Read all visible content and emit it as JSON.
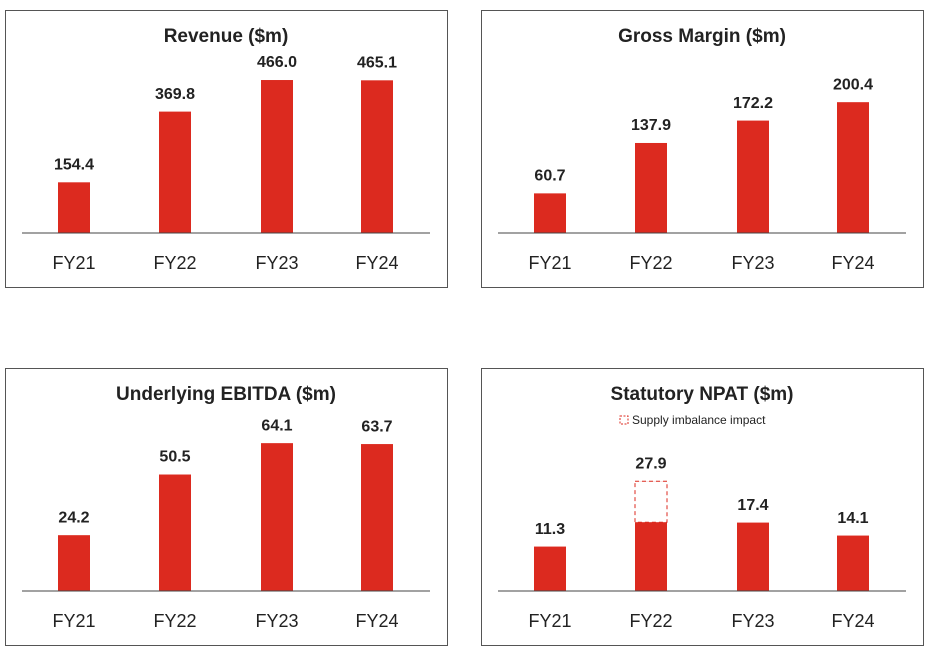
{
  "chart_data": [
    {
      "type": "bar",
      "title": "Revenue ($m)",
      "categories": [
        "FY21",
        "FY22",
        "FY23",
        "FY24"
      ],
      "values": [
        154.4,
        369.8,
        466.0,
        465.1
      ],
      "value_labels": [
        "154.4",
        "369.8",
        "466.0",
        "465.1"
      ],
      "color": "#dc2a1f",
      "ylim": [
        0,
        527
      ]
    },
    {
      "type": "bar",
      "title": "Gross Margin ($m)",
      "categories": [
        "FY21",
        "FY22",
        "FY23",
        "FY24"
      ],
      "values": [
        60.7,
        137.9,
        172.2,
        200.4
      ],
      "color": "#dc2a1f",
      "ylim": [
        0,
        265
      ]
    },
    {
      "type": "bar",
      "title": "Underlying EBITDA ($m)",
      "categories": [
        "FY21",
        "FY22",
        "FY23",
        "FY24"
      ],
      "values": [
        24.2,
        50.5,
        64.1,
        63.7
      ],
      "color": "#dc2a1f",
      "ylim": [
        0,
        75
      ]
    },
    {
      "type": "bar",
      "title": "Statutory NPAT ($m)",
      "categories": [
        "FY21",
        "FY22",
        "FY23",
        "FY24"
      ],
      "values": [
        11.3,
        27.9,
        17.4,
        14.1
      ],
      "color": "#dc2a1f",
      "ylim": [
        0,
        44
      ],
      "impact": {
        "name": "Supply imbalance impact",
        "values": [
          null,
          10.4,
          null,
          null
        ]
      }
    }
  ]
}
